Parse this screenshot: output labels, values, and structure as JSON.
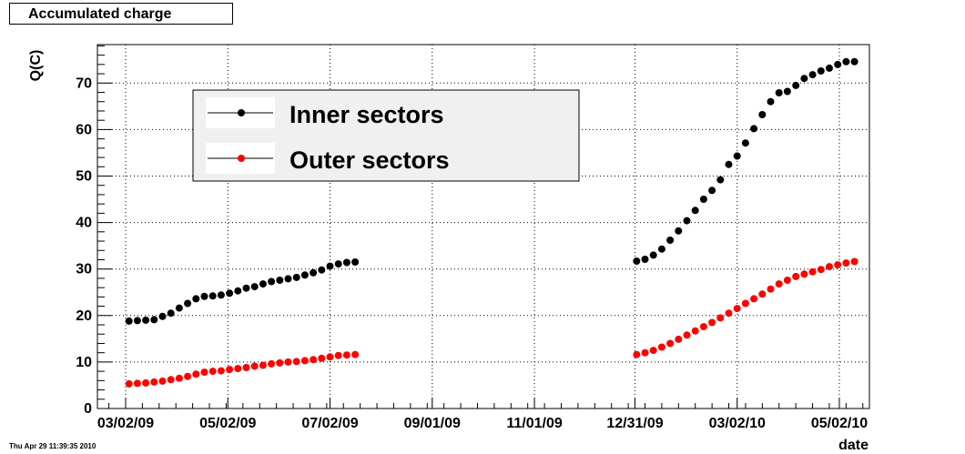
{
  "stamp": "Thu Apr 29 11:39:35 2010",
  "chart_data": {
    "type": "scatter",
    "title": "Accumulated charge",
    "xlabel": "date",
    "ylabel": "Q(C)",
    "x_ticks": [
      "03/02/09",
      "05/02/09",
      "07/02/09",
      "09/01/09",
      "11/01/09",
      "12/31/09",
      "03/02/10",
      "05/02/10"
    ],
    "ylim": [
      0,
      80
    ],
    "y_ticks": [
      0,
      10,
      20,
      30,
      40,
      50,
      60,
      70
    ],
    "grid": true,
    "legend_position": "upper-left",
    "series": [
      {
        "name": "Inner sectors",
        "color": "#000000",
        "points": [
          [
            "2009-03-04",
            18.8
          ],
          [
            "2009-03-09",
            18.9
          ],
          [
            "2009-03-14",
            19.0
          ],
          [
            "2009-03-19",
            19.1
          ],
          [
            "2009-03-24",
            19.8
          ],
          [
            "2009-03-29",
            20.5
          ],
          [
            "2009-04-03",
            21.6
          ],
          [
            "2009-04-08",
            22.6
          ],
          [
            "2009-04-13",
            23.6
          ],
          [
            "2009-04-18",
            24.1
          ],
          [
            "2009-04-23",
            24.2
          ],
          [
            "2009-04-28",
            24.4
          ],
          [
            "2009-05-03",
            24.8
          ],
          [
            "2009-05-08",
            25.3
          ],
          [
            "2009-05-13",
            25.9
          ],
          [
            "2009-05-18",
            26.2
          ],
          [
            "2009-05-23",
            26.8
          ],
          [
            "2009-05-28",
            27.3
          ],
          [
            "2009-06-02",
            27.6
          ],
          [
            "2009-06-07",
            27.9
          ],
          [
            "2009-06-12",
            28.2
          ],
          [
            "2009-06-17",
            28.7
          ],
          [
            "2009-06-22",
            29.2
          ],
          [
            "2009-06-27",
            29.8
          ],
          [
            "2009-07-02",
            30.6
          ],
          [
            "2009-07-07",
            31.1
          ],
          [
            "2009-07-12",
            31.4
          ],
          [
            "2009-07-17",
            31.5
          ],
          [
            "2010-01-01",
            31.7
          ],
          [
            "2010-01-06",
            32.1
          ],
          [
            "2010-01-11",
            33.0
          ],
          [
            "2010-01-16",
            34.3
          ],
          [
            "2010-01-21",
            36.2
          ],
          [
            "2010-01-26",
            38.2
          ],
          [
            "2010-01-31",
            40.4
          ],
          [
            "2010-02-05",
            42.6
          ],
          [
            "2010-02-10",
            45.0
          ],
          [
            "2010-02-15",
            46.9
          ],
          [
            "2010-02-20",
            49.2
          ],
          [
            "2010-02-25",
            52.5
          ],
          [
            "2010-03-02",
            54.3
          ],
          [
            "2010-03-07",
            57.1
          ],
          [
            "2010-03-12",
            60.2
          ],
          [
            "2010-03-17",
            63.2
          ],
          [
            "2010-03-22",
            66.0
          ],
          [
            "2010-03-27",
            67.9
          ],
          [
            "2010-04-01",
            68.2
          ],
          [
            "2010-04-06",
            69.5
          ],
          [
            "2010-04-11",
            71.0
          ],
          [
            "2010-04-16",
            71.8
          ],
          [
            "2010-04-21",
            72.6
          ],
          [
            "2010-04-26",
            73.2
          ],
          [
            "2010-05-01",
            74.0
          ],
          [
            "2010-05-06",
            74.6
          ],
          [
            "2010-05-11",
            74.6
          ]
        ]
      },
      {
        "name": "Outer sectors",
        "color": "#ff0000",
        "points": [
          [
            "2009-03-04",
            5.3
          ],
          [
            "2009-03-09",
            5.4
          ],
          [
            "2009-03-14",
            5.5
          ],
          [
            "2009-03-19",
            5.7
          ],
          [
            "2009-03-24",
            5.9
          ],
          [
            "2009-03-29",
            6.2
          ],
          [
            "2009-04-03",
            6.5
          ],
          [
            "2009-04-08",
            6.9
          ],
          [
            "2009-04-13",
            7.4
          ],
          [
            "2009-04-18",
            7.8
          ],
          [
            "2009-04-23",
            8.0
          ],
          [
            "2009-04-28",
            8.1
          ],
          [
            "2009-05-03",
            8.4
          ],
          [
            "2009-05-08",
            8.6
          ],
          [
            "2009-05-13",
            8.8
          ],
          [
            "2009-05-18",
            9.1
          ],
          [
            "2009-05-23",
            9.3
          ],
          [
            "2009-05-28",
            9.6
          ],
          [
            "2009-06-02",
            9.8
          ],
          [
            "2009-06-07",
            10.0
          ],
          [
            "2009-06-12",
            10.1
          ],
          [
            "2009-06-17",
            10.3
          ],
          [
            "2009-06-22",
            10.5
          ],
          [
            "2009-06-27",
            10.8
          ],
          [
            "2009-07-02",
            11.1
          ],
          [
            "2009-07-07",
            11.4
          ],
          [
            "2009-07-12",
            11.5
          ],
          [
            "2009-07-17",
            11.6
          ],
          [
            "2010-01-01",
            11.6
          ],
          [
            "2010-01-06",
            12.0
          ],
          [
            "2010-01-11",
            12.5
          ],
          [
            "2010-01-16",
            13.2
          ],
          [
            "2010-01-21",
            14.0
          ],
          [
            "2010-01-26",
            14.9
          ],
          [
            "2010-01-31",
            15.8
          ],
          [
            "2010-02-05",
            16.7
          ],
          [
            "2010-02-10",
            17.6
          ],
          [
            "2010-02-15",
            18.5
          ],
          [
            "2010-02-20",
            19.5
          ],
          [
            "2010-02-25",
            20.5
          ],
          [
            "2010-03-02",
            21.5
          ],
          [
            "2010-03-07",
            22.6
          ],
          [
            "2010-03-12",
            23.6
          ],
          [
            "2010-03-17",
            24.6
          ],
          [
            "2010-03-22",
            25.7
          ],
          [
            "2010-03-27",
            26.8
          ],
          [
            "2010-04-01",
            27.6
          ],
          [
            "2010-04-06",
            28.4
          ],
          [
            "2010-04-11",
            28.9
          ],
          [
            "2010-04-16",
            29.4
          ],
          [
            "2010-04-21",
            29.9
          ],
          [
            "2010-04-26",
            30.5
          ],
          [
            "2010-05-01",
            30.9
          ],
          [
            "2010-05-06",
            31.3
          ],
          [
            "2010-05-11",
            31.6
          ]
        ]
      }
    ]
  }
}
